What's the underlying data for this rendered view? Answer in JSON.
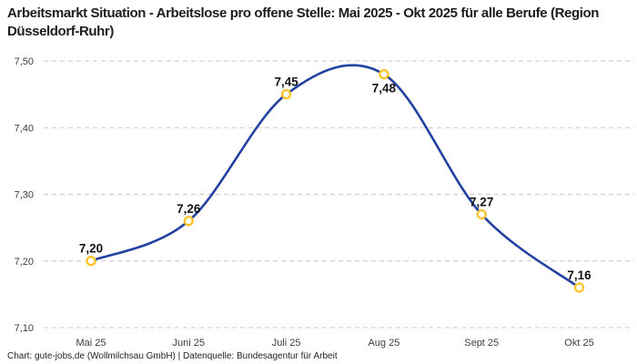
{
  "header": {
    "title": "Arbeitsmarkt Situation - Arbeitslose pro offene Stelle: Mai 2025 - Okt 2025 für alle Berufe (Region Düsseldorf-Ruhr)"
  },
  "footer": {
    "credit": "Chart: gute-jobs.de (Wollmilchsau GmbH) | Datenquelle: Bundesagentur für Arbeit"
  },
  "chart_data": {
    "type": "line",
    "title": "Arbeitsmarkt Situation - Arbeitslose pro offene Stelle: Mai 2025 - Okt 2025 für alle Berufe (Region Düsseldorf-Ruhr)",
    "categories": [
      "Mai 25",
      "Juni 25",
      "Juli 25",
      "Aug 25",
      "Sept 25",
      "Okt 25"
    ],
    "values": [
      7.2,
      7.26,
      7.45,
      7.48,
      7.27,
      7.16
    ],
    "value_labels": [
      "7,20",
      "7,26",
      "7,45",
      "7,48",
      "7,27",
      "7,16"
    ],
    "label_positions": [
      "above",
      "above",
      "above",
      "below",
      "above",
      "above"
    ],
    "yticks": [
      {
        "value": 7.5,
        "label": "7,50"
      },
      {
        "value": 7.4,
        "label": "7,40"
      },
      {
        "value": 7.3,
        "label": "7,30"
      },
      {
        "value": 7.2,
        "label": "7,20"
      },
      {
        "value": 7.1,
        "label": "7,10"
      }
    ],
    "ylim": [
      7.1,
      7.5
    ],
    "xlabel": "",
    "ylabel": "",
    "grid": "dashed-horizontal",
    "legend": "none",
    "line_style": "smooth-spline",
    "colors": {
      "line": "#2341a0",
      "marker_ring": "#fcc42c",
      "marker_fill": "#ffffff",
      "grid": "#c9c9c9",
      "label": "#141414",
      "axis_text": "#3d3d3d"
    }
  }
}
